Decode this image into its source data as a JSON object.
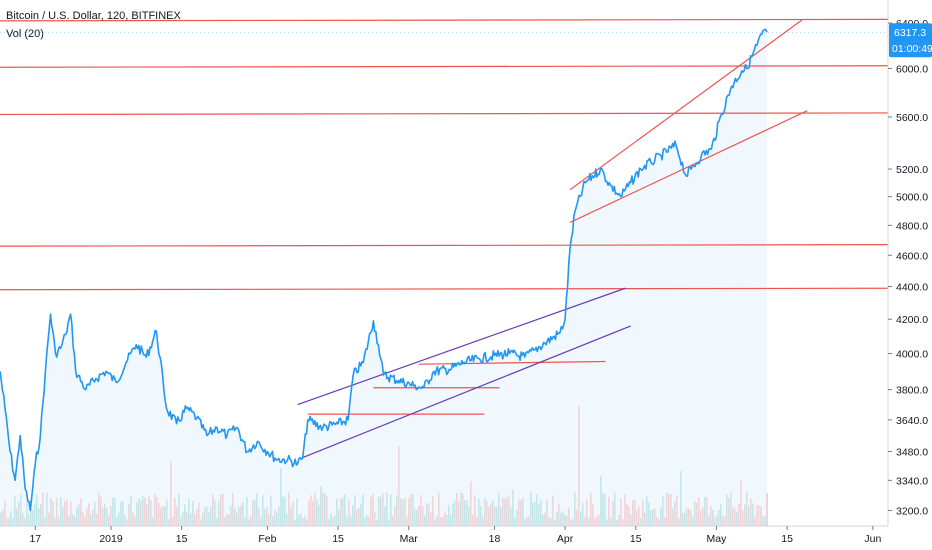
{
  "chart_data": {
    "type": "line",
    "title": "Bitcoin / U.S. Dollar, 120, BITFINEX",
    "indicator": "Vol (20)",
    "last_price": "6317.3",
    "countdown": "01:00:49",
    "x_tick_labels": [
      "17",
      "2019",
      "15",
      "Feb",
      "15",
      "Mar",
      "18",
      "Apr",
      "15",
      "May",
      "15",
      "Jun"
    ],
    "y_tick_labels": [
      "3200.0",
      "3340.0",
      "3480.0",
      "3640.0",
      "3800.0",
      "4000.0",
      "4200.0",
      "4400.0",
      "4600.0",
      "4800.0",
      "5000.0",
      "5200.0",
      "5600.0",
      "6000.0",
      "6400.0"
    ],
    "y_ticks": [
      3200,
      3340,
      3480,
      3640,
      3800,
      4000,
      4200,
      4400,
      4600,
      4800,
      5000,
      5200,
      5600,
      6000,
      6400
    ],
    "y_scale": "log",
    "ylim": [
      3130,
      6520
    ],
    "xlim": [
      "2018-12-10",
      "2019-06-04"
    ],
    "grid": false,
    "colors": {
      "price_line": "#2196f3",
      "area_fill": "#e3f2fd",
      "support_resistance": "#ef5350",
      "trend_channel_lower": "#673ab7",
      "last_price_label_bg": "#2196f3",
      "volume_up": "#26a69a",
      "volume_down": "#ef5350"
    },
    "series": [
      {
        "x": [
          "2018-12-10",
          "2018-12-11",
          "2018-12-12",
          "2018-12-13",
          "2018-12-14",
          "2018-12-15",
          "2018-12-16",
          "2018-12-17",
          "2018-12-18",
          "2018-12-19",
          "2018-12-20",
          "2018-12-21",
          "2018-12-22",
          "2018-12-23",
          "2018-12-24",
          "2018-12-25",
          "2018-12-27",
          "2018-12-29",
          "2018-12-31",
          "2019-01-02",
          "2019-01-04",
          "2019-01-06",
          "2019-01-08",
          "2019-01-10",
          "2019-01-12",
          "2019-01-14",
          "2019-01-16",
          "2019-01-18",
          "2019-01-20",
          "2019-01-22",
          "2019-01-24",
          "2019-01-26",
          "2019-01-28",
          "2019-01-30",
          "2019-02-01",
          "2019-02-03",
          "2019-02-05",
          "2019-02-07",
          "2019-02-08",
          "2019-02-09",
          "2019-02-12",
          "2019-02-15",
          "2019-02-17",
          "2019-02-18",
          "2019-02-20",
          "2019-02-22",
          "2019-02-23",
          "2019-02-24",
          "2019-02-27",
          "2019-03-02",
          "2019-03-04",
          "2019-03-06",
          "2019-03-09",
          "2019-03-12",
          "2019-03-15",
          "2019-03-18",
          "2019-03-21",
          "2019-03-24",
          "2019-03-26",
          "2019-03-28",
          "2019-03-31",
          "2019-04-01",
          "2019-04-02",
          "2019-04-03",
          "2019-04-05",
          "2019-04-08",
          "2019-04-10",
          "2019-04-12",
          "2019-04-14",
          "2019-04-16",
          "2019-04-18",
          "2019-04-20",
          "2019-04-23",
          "2019-04-25",
          "2019-04-26",
          "2019-04-28",
          "2019-04-30",
          "2019-05-02",
          "2019-05-04",
          "2019-05-06",
          "2019-05-07",
          "2019-05-09",
          "2019-05-10",
          "2019-05-11"
        ],
        "y": [
          3900,
          3700,
          3480,
          3340,
          3560,
          3300,
          3200,
          3420,
          3560,
          3900,
          4230,
          4000,
          4030,
          4110,
          4230,
          3900,
          3800,
          3860,
          3900,
          3840,
          3950,
          4050,
          3980,
          4130,
          3700,
          3620,
          3700,
          3650,
          3560,
          3600,
          3560,
          3600,
          3480,
          3530,
          3480,
          3440,
          3440,
          3420,
          3450,
          3640,
          3600,
          3620,
          3640,
          3880,
          3950,
          4190,
          4050,
          3880,
          3850,
          3820,
          3810,
          3900,
          3910,
          3950,
          3970,
          3990,
          4000,
          3980,
          4020,
          4060,
          4120,
          4200,
          4650,
          4900,
          5100,
          5200,
          5080,
          5000,
          5100,
          5200,
          5250,
          5300,
          5380,
          5150,
          5200,
          5300,
          5350,
          5620,
          5850,
          5980,
          6000,
          6200,
          6300,
          6317.3
        ]
      }
    ],
    "horizontal_levels": [
      6420,
      6010,
      5620,
      4660,
      4380
    ],
    "support_segments": [
      {
        "x": [
          "2019-02-09",
          "2019-03-16"
        ],
        "y": [
          3670,
          3670
        ]
      },
      {
        "x": [
          "2019-02-22",
          "2019-03-19"
        ],
        "y": [
          3810,
          3810
        ]
      },
      {
        "x": [
          "2019-03-03",
          "2019-04-09"
        ],
        "y": [
          3940,
          3955
        ]
      }
    ],
    "trend_channels": [
      {
        "x": [
          "2019-02-07",
          "2019-04-13"
        ],
        "y": [
          3720,
          4390
        ]
      },
      {
        "x": [
          "2019-02-08",
          "2019-04-14"
        ],
        "y": [
          3450,
          4160
        ]
      },
      {
        "x": [
          "2019-04-02",
          "2019-05-18"
        ],
        "y": [
          5050,
          6430
        ]
      },
      {
        "x": [
          "2019-04-02",
          "2019-05-19"
        ],
        "y": [
          4820,
          5650
        ]
      }
    ]
  }
}
